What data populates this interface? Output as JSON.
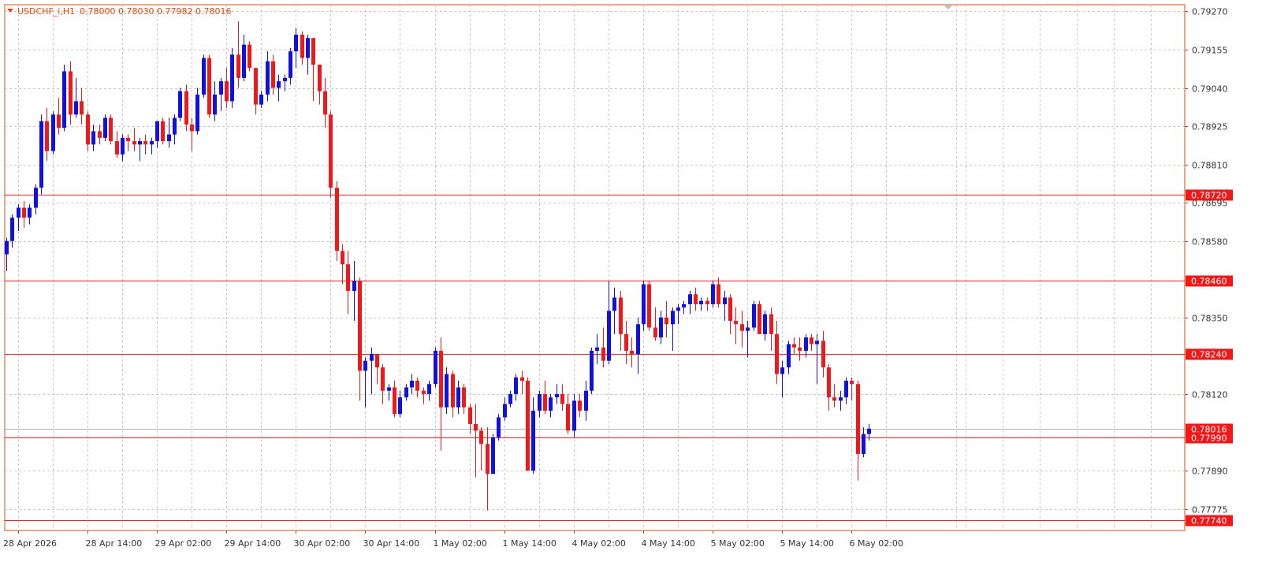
{
  "symbol_header": {
    "symbol": "USDCHF_i,H1",
    "ohlc": "0.78000 0.78030 0.77982 0.78016"
  },
  "colors": {
    "bull": "#1010e0",
    "bear": "#f01818",
    "level_line": "#e61d1d",
    "grid": "#c8c8c8",
    "frame": "#e8480e",
    "axis_text": "#333333",
    "header_text": "#e8480e",
    "current_price_tag": "#f01818",
    "level_tag": "#f01818"
  },
  "chart_data": {
    "type": "candlestick",
    "timeframe": "H1",
    "title": "USDCHF_i,H1",
    "ylim": [
      0.7771,
      0.7929
    ],
    "grid": true,
    "price_ticks": [
      "0.79270",
      "0.79155",
      "0.79040",
      "0.78925",
      "0.78810",
      "0.78695",
      "0.78580",
      "0.78350",
      "0.78120",
      "0.77890",
      "0.77775"
    ],
    "time_labels": [
      "28 Apr 2026",
      "28 Apr 14:00",
      "29 Apr 02:00",
      "29 Apr 14:00",
      "30 Apr 02:00",
      "30 Apr 14:00",
      "1 May 02:00",
      "1 May 14:00",
      "4 May 02:00",
      "4 May 14:00",
      "5 May 02:00",
      "5 May 14:00",
      "6 May 02:00"
    ],
    "horizontal_levels": [
      {
        "value": 0.7872,
        "label": "0.78720"
      },
      {
        "value": 0.7846,
        "label": "0.78460"
      },
      {
        "value": 0.7824,
        "label": "0.78240"
      },
      {
        "value": 0.7799,
        "label": "0.77990"
      },
      {
        "value": 0.7774,
        "label": "0.77740"
      }
    ],
    "current_price": {
      "value": 0.78016,
      "label": "0.78016"
    },
    "candles": [
      {
        "o": 0.7854,
        "h": 0.7859,
        "l": 0.7849,
        "c": 0.7858
      },
      {
        "o": 0.7858,
        "h": 0.7866,
        "l": 0.7856,
        "c": 0.7865
      },
      {
        "o": 0.7865,
        "h": 0.7869,
        "l": 0.7861,
        "c": 0.7868
      },
      {
        "o": 0.7868,
        "h": 0.787,
        "l": 0.7862,
        "c": 0.7865
      },
      {
        "o": 0.7865,
        "h": 0.7869,
        "l": 0.7863,
        "c": 0.7868
      },
      {
        "o": 0.7868,
        "h": 0.7875,
        "l": 0.7866,
        "c": 0.7874
      },
      {
        "o": 0.7874,
        "h": 0.7896,
        "l": 0.7872,
        "c": 0.7894
      },
      {
        "o": 0.7894,
        "h": 0.7898,
        "l": 0.7882,
        "c": 0.7885
      },
      {
        "o": 0.7885,
        "h": 0.7897,
        "l": 0.7884,
        "c": 0.7896
      },
      {
        "o": 0.7896,
        "h": 0.7901,
        "l": 0.789,
        "c": 0.7892
      },
      {
        "o": 0.7892,
        "h": 0.7911,
        "l": 0.7891,
        "c": 0.7909
      },
      {
        "o": 0.7909,
        "h": 0.7912,
        "l": 0.7893,
        "c": 0.7896
      },
      {
        "o": 0.7896,
        "h": 0.7907,
        "l": 0.7895,
        "c": 0.79
      },
      {
        "o": 0.79,
        "h": 0.7904,
        "l": 0.7893,
        "c": 0.7896
      },
      {
        "o": 0.7896,
        "h": 0.7897,
        "l": 0.7885,
        "c": 0.7887
      },
      {
        "o": 0.7887,
        "h": 0.7893,
        "l": 0.7885,
        "c": 0.7891
      },
      {
        "o": 0.7891,
        "h": 0.7893,
        "l": 0.7887,
        "c": 0.7889
      },
      {
        "o": 0.7889,
        "h": 0.7896,
        "l": 0.7888,
        "c": 0.7895
      },
      {
        "o": 0.7895,
        "h": 0.7896,
        "l": 0.7887,
        "c": 0.7888
      },
      {
        "o": 0.7888,
        "h": 0.7891,
        "l": 0.7883,
        "c": 0.7884
      },
      {
        "o": 0.7884,
        "h": 0.789,
        "l": 0.7882,
        "c": 0.7889
      },
      {
        "o": 0.7889,
        "h": 0.789,
        "l": 0.7885,
        "c": 0.7888
      },
      {
        "o": 0.7888,
        "h": 0.7892,
        "l": 0.7885,
        "c": 0.7887
      },
      {
        "o": 0.7887,
        "h": 0.7889,
        "l": 0.7882,
        "c": 0.7888
      },
      {
        "o": 0.7888,
        "h": 0.789,
        "l": 0.7884,
        "c": 0.7887
      },
      {
        "o": 0.7887,
        "h": 0.7889,
        "l": 0.7884,
        "c": 0.7888
      },
      {
        "o": 0.7888,
        "h": 0.7894,
        "l": 0.7886,
        "c": 0.7894
      },
      {
        "o": 0.7894,
        "h": 0.7895,
        "l": 0.7887,
        "c": 0.7888
      },
      {
        "o": 0.7888,
        "h": 0.7895,
        "l": 0.7886,
        "c": 0.789
      },
      {
        "o": 0.789,
        "h": 0.7896,
        "l": 0.7887,
        "c": 0.7895
      },
      {
        "o": 0.7895,
        "h": 0.7904,
        "l": 0.7894,
        "c": 0.7903
      },
      {
        "o": 0.7903,
        "h": 0.7905,
        "l": 0.7891,
        "c": 0.7893
      },
      {
        "o": 0.7893,
        "h": 0.7895,
        "l": 0.7885,
        "c": 0.7891
      },
      {
        "o": 0.7891,
        "h": 0.7904,
        "l": 0.789,
        "c": 0.7902
      },
      {
        "o": 0.7902,
        "h": 0.7914,
        "l": 0.7901,
        "c": 0.7913
      },
      {
        "o": 0.7913,
        "h": 0.7914,
        "l": 0.7895,
        "c": 0.7896
      },
      {
        "o": 0.7896,
        "h": 0.7906,
        "l": 0.7894,
        "c": 0.7902
      },
      {
        "o": 0.7902,
        "h": 0.7907,
        "l": 0.7897,
        "c": 0.7906
      },
      {
        "o": 0.7906,
        "h": 0.791,
        "l": 0.7898,
        "c": 0.79
      },
      {
        "o": 0.79,
        "h": 0.7916,
        "l": 0.7898,
        "c": 0.7914
      },
      {
        "o": 0.7914,
        "h": 0.7924,
        "l": 0.7904,
        "c": 0.7907
      },
      {
        "o": 0.7907,
        "h": 0.792,
        "l": 0.7906,
        "c": 0.7917
      },
      {
        "o": 0.7917,
        "h": 0.7918,
        "l": 0.7909,
        "c": 0.791
      },
      {
        "o": 0.791,
        "h": 0.791,
        "l": 0.7896,
        "c": 0.7899
      },
      {
        "o": 0.7899,
        "h": 0.7903,
        "l": 0.7898,
        "c": 0.7902
      },
      {
        "o": 0.7902,
        "h": 0.7915,
        "l": 0.79,
        "c": 0.7912
      },
      {
        "o": 0.7912,
        "h": 0.7914,
        "l": 0.7902,
        "c": 0.7904
      },
      {
        "o": 0.7904,
        "h": 0.7908,
        "l": 0.79,
        "c": 0.7906
      },
      {
        "o": 0.7906,
        "h": 0.7908,
        "l": 0.7903,
        "c": 0.7907
      },
      {
        "o": 0.7907,
        "h": 0.7916,
        "l": 0.7905,
        "c": 0.7915
      },
      {
        "o": 0.7915,
        "h": 0.7922,
        "l": 0.791,
        "c": 0.792
      },
      {
        "o": 0.792,
        "h": 0.7921,
        "l": 0.7911,
        "c": 0.7913
      },
      {
        "o": 0.7913,
        "h": 0.792,
        "l": 0.7908,
        "c": 0.7919
      },
      {
        "o": 0.7919,
        "h": 0.7919,
        "l": 0.79,
        "c": 0.7911
      },
      {
        "o": 0.7911,
        "h": 0.7911,
        "l": 0.7899,
        "c": 0.7903
      },
      {
        "o": 0.7903,
        "h": 0.7907,
        "l": 0.7892,
        "c": 0.7896
      },
      {
        "o": 0.7896,
        "h": 0.7897,
        "l": 0.7871,
        "c": 0.7874
      },
      {
        "o": 0.7874,
        "h": 0.7876,
        "l": 0.7852,
        "c": 0.7855
      },
      {
        "o": 0.7855,
        "h": 0.7857,
        "l": 0.7845,
        "c": 0.7851
      },
      {
        "o": 0.7851,
        "h": 0.7855,
        "l": 0.7836,
        "c": 0.7843
      },
      {
        "o": 0.7843,
        "h": 0.7852,
        "l": 0.7834,
        "c": 0.7846
      },
      {
        "o": 0.7846,
        "h": 0.7847,
        "l": 0.781,
        "c": 0.7819
      },
      {
        "o": 0.7819,
        "h": 0.7823,
        "l": 0.7808,
        "c": 0.7822
      },
      {
        "o": 0.7822,
        "h": 0.7826,
        "l": 0.7812,
        "c": 0.7824
      },
      {
        "o": 0.7824,
        "h": 0.7824,
        "l": 0.7815,
        "c": 0.782
      },
      {
        "o": 0.782,
        "h": 0.7821,
        "l": 0.7809,
        "c": 0.7813
      },
      {
        "o": 0.7813,
        "h": 0.7815,
        "l": 0.781,
        "c": 0.7814
      },
      {
        "o": 0.7814,
        "h": 0.7816,
        "l": 0.7805,
        "c": 0.7806
      },
      {
        "o": 0.7806,
        "h": 0.7813,
        "l": 0.7805,
        "c": 0.7811
      },
      {
        "o": 0.7811,
        "h": 0.7815,
        "l": 0.781,
        "c": 0.7814
      },
      {
        "o": 0.7814,
        "h": 0.7818,
        "l": 0.7812,
        "c": 0.7816
      },
      {
        "o": 0.7816,
        "h": 0.7817,
        "l": 0.7811,
        "c": 0.7813
      },
      {
        "o": 0.7813,
        "h": 0.7814,
        "l": 0.7809,
        "c": 0.7812
      },
      {
        "o": 0.7812,
        "h": 0.7816,
        "l": 0.781,
        "c": 0.7815
      },
      {
        "o": 0.7815,
        "h": 0.7826,
        "l": 0.7814,
        "c": 0.7825
      },
      {
        "o": 0.7825,
        "h": 0.7829,
        "l": 0.7795,
        "c": 0.7808
      },
      {
        "o": 0.7808,
        "h": 0.782,
        "l": 0.7806,
        "c": 0.7818
      },
      {
        "o": 0.7818,
        "h": 0.7819,
        "l": 0.7805,
        "c": 0.7808
      },
      {
        "o": 0.7808,
        "h": 0.7816,
        "l": 0.7806,
        "c": 0.7814
      },
      {
        "o": 0.7814,
        "h": 0.7815,
        "l": 0.7806,
        "c": 0.7808
      },
      {
        "o": 0.7808,
        "h": 0.7809,
        "l": 0.78,
        "c": 0.7803
      },
      {
        "o": 0.7803,
        "h": 0.7809,
        "l": 0.7787,
        "c": 0.7801
      },
      {
        "o": 0.7801,
        "h": 0.7802,
        "l": 0.7789,
        "c": 0.7797
      },
      {
        "o": 0.7797,
        "h": 0.7802,
        "l": 0.7777,
        "c": 0.7788
      },
      {
        "o": 0.7788,
        "h": 0.78,
        "l": 0.7788,
        "c": 0.7799
      },
      {
        "o": 0.7799,
        "h": 0.7806,
        "l": 0.7798,
        "c": 0.7805
      },
      {
        "o": 0.7805,
        "h": 0.7811,
        "l": 0.7804,
        "c": 0.7809
      },
      {
        "o": 0.7809,
        "h": 0.7813,
        "l": 0.7808,
        "c": 0.7812
      },
      {
        "o": 0.7812,
        "h": 0.7818,
        "l": 0.781,
        "c": 0.7817
      },
      {
        "o": 0.7817,
        "h": 0.7819,
        "l": 0.7812,
        "c": 0.7816
      },
      {
        "o": 0.7816,
        "h": 0.7817,
        "l": 0.7789,
        "c": 0.7789
      },
      {
        "o": 0.7789,
        "h": 0.7811,
        "l": 0.7788,
        "c": 0.7807
      },
      {
        "o": 0.7807,
        "h": 0.7813,
        "l": 0.7805,
        "c": 0.7812
      },
      {
        "o": 0.7812,
        "h": 0.7816,
        "l": 0.7806,
        "c": 0.7807
      },
      {
        "o": 0.7807,
        "h": 0.7812,
        "l": 0.7805,
        "c": 0.7811
      },
      {
        "o": 0.7811,
        "h": 0.7815,
        "l": 0.7809,
        "c": 0.7812
      },
      {
        "o": 0.7812,
        "h": 0.7815,
        "l": 0.7807,
        "c": 0.7809
      },
      {
        "o": 0.7809,
        "h": 0.7812,
        "l": 0.78,
        "c": 0.7801
      },
      {
        "o": 0.7801,
        "h": 0.7812,
        "l": 0.7799,
        "c": 0.781
      },
      {
        "o": 0.781,
        "h": 0.7812,
        "l": 0.7805,
        "c": 0.7807
      },
      {
        "o": 0.7807,
        "h": 0.7816,
        "l": 0.7804,
        "c": 0.7813
      },
      {
        "o": 0.7813,
        "h": 0.7826,
        "l": 0.7812,
        "c": 0.7825
      },
      {
        "o": 0.7825,
        "h": 0.783,
        "l": 0.7821,
        "c": 0.7826
      },
      {
        "o": 0.7826,
        "h": 0.7832,
        "l": 0.782,
        "c": 0.7822
      },
      {
        "o": 0.7822,
        "h": 0.7846,
        "l": 0.7821,
        "c": 0.7837
      },
      {
        "o": 0.7837,
        "h": 0.7844,
        "l": 0.783,
        "c": 0.7841
      },
      {
        "o": 0.7841,
        "h": 0.7843,
        "l": 0.7825,
        "c": 0.783
      },
      {
        "o": 0.783,
        "h": 0.7834,
        "l": 0.7821,
        "c": 0.7825
      },
      {
        "o": 0.7825,
        "h": 0.7829,
        "l": 0.782,
        "c": 0.7824
      },
      {
        "o": 0.7824,
        "h": 0.7835,
        "l": 0.7818,
        "c": 0.7833
      },
      {
        "o": 0.7833,
        "h": 0.7846,
        "l": 0.7831,
        "c": 0.7845
      },
      {
        "o": 0.7845,
        "h": 0.7846,
        "l": 0.7831,
        "c": 0.7832
      },
      {
        "o": 0.7832,
        "h": 0.7838,
        "l": 0.7828,
        "c": 0.7829
      },
      {
        "o": 0.7829,
        "h": 0.7837,
        "l": 0.7827,
        "c": 0.7835
      },
      {
        "o": 0.7835,
        "h": 0.784,
        "l": 0.7829,
        "c": 0.7833
      },
      {
        "o": 0.7833,
        "h": 0.7838,
        "l": 0.7825,
        "c": 0.7837
      },
      {
        "o": 0.7837,
        "h": 0.7839,
        "l": 0.7833,
        "c": 0.7838
      },
      {
        "o": 0.7838,
        "h": 0.784,
        "l": 0.7836,
        "c": 0.7839
      },
      {
        "o": 0.7839,
        "h": 0.7843,
        "l": 0.7836,
        "c": 0.7842
      },
      {
        "o": 0.7842,
        "h": 0.7844,
        "l": 0.7837,
        "c": 0.7839
      },
      {
        "o": 0.7839,
        "h": 0.7841,
        "l": 0.7837,
        "c": 0.784
      },
      {
        "o": 0.784,
        "h": 0.7841,
        "l": 0.7837,
        "c": 0.7839
      },
      {
        "o": 0.7839,
        "h": 0.7846,
        "l": 0.7838,
        "c": 0.7845
      },
      {
        "o": 0.7845,
        "h": 0.7847,
        "l": 0.7838,
        "c": 0.7839
      },
      {
        "o": 0.7839,
        "h": 0.7843,
        "l": 0.7834,
        "c": 0.7841
      },
      {
        "o": 0.7841,
        "h": 0.7842,
        "l": 0.783,
        "c": 0.7834
      },
      {
        "o": 0.7834,
        "h": 0.7838,
        "l": 0.7827,
        "c": 0.7833
      },
      {
        "o": 0.7833,
        "h": 0.7837,
        "l": 0.7826,
        "c": 0.7831
      },
      {
        "o": 0.7831,
        "h": 0.7834,
        "l": 0.7823,
        "c": 0.7832
      },
      {
        "o": 0.7832,
        "h": 0.784,
        "l": 0.7831,
        "c": 0.7839
      },
      {
        "o": 0.7839,
        "h": 0.784,
        "l": 0.783,
        "c": 0.783
      },
      {
        "o": 0.783,
        "h": 0.7837,
        "l": 0.7828,
        "c": 0.7836
      },
      {
        "o": 0.7836,
        "h": 0.7838,
        "l": 0.7825,
        "c": 0.783
      },
      {
        "o": 0.783,
        "h": 0.7834,
        "l": 0.7815,
        "c": 0.7818
      },
      {
        "o": 0.7818,
        "h": 0.7822,
        "l": 0.7811,
        "c": 0.782
      },
      {
        "o": 0.782,
        "h": 0.7828,
        "l": 0.7818,
        "c": 0.7827
      },
      {
        "o": 0.7827,
        "h": 0.7829,
        "l": 0.7824,
        "c": 0.7826
      },
      {
        "o": 0.7826,
        "h": 0.7829,
        "l": 0.7822,
        "c": 0.7825
      },
      {
        "o": 0.7825,
        "h": 0.783,
        "l": 0.7823,
        "c": 0.7829
      },
      {
        "o": 0.7829,
        "h": 0.783,
        "l": 0.7825,
        "c": 0.7827
      },
      {
        "o": 0.7827,
        "h": 0.783,
        "l": 0.7815,
        "c": 0.7828
      },
      {
        "o": 0.7828,
        "h": 0.7831,
        "l": 0.7817,
        "c": 0.782
      },
      {
        "o": 0.782,
        "h": 0.7821,
        "l": 0.7807,
        "c": 0.7811
      },
      {
        "o": 0.7811,
        "h": 0.7815,
        "l": 0.7808,
        "c": 0.781
      },
      {
        "o": 0.781,
        "h": 0.7813,
        "l": 0.7807,
        "c": 0.7811
      },
      {
        "o": 0.7811,
        "h": 0.7817,
        "l": 0.7809,
        "c": 0.7816
      },
      {
        "o": 0.7816,
        "h": 0.7817,
        "l": 0.781,
        "c": 0.7815
      },
      {
        "o": 0.7815,
        "h": 0.7816,
        "l": 0.7786,
        "c": 0.7794
      },
      {
        "o": 0.7794,
        "h": 0.7802,
        "l": 0.7793,
        "c": 0.78
      },
      {
        "o": 0.78,
        "h": 0.7803,
        "l": 0.7798,
        "c": 0.78016
      }
    ]
  }
}
